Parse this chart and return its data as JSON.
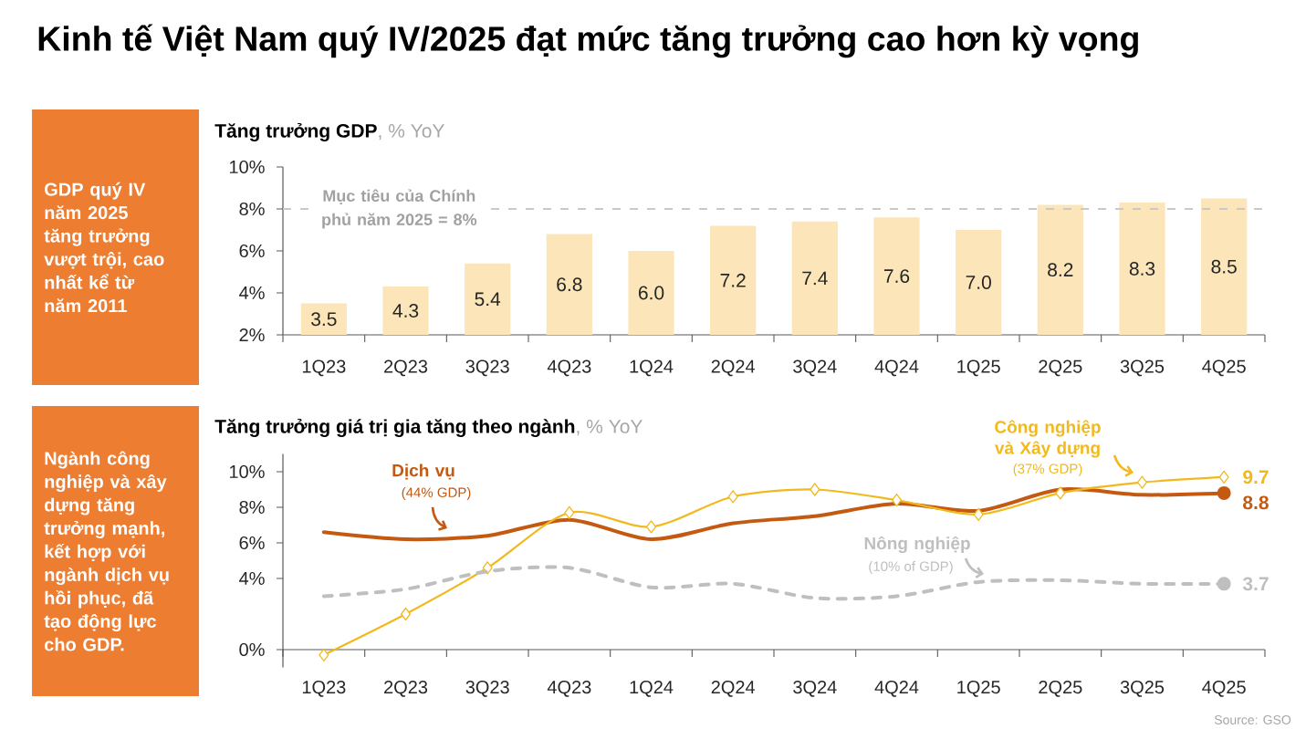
{
  "chart_data": [
    {
      "type": "other",
      "title": "Kinh tế Việt Nam quý IV/2025 đạt mức tăng trưởng cao hơn kỳ vọng"
    },
    {
      "type": "other",
      "color": "#ED7D31",
      "annotations": [
        "GDP quý IV năm 2025 tăng trưởng vượt trội, cao nhất kể từ năm 2011"
      ]
    },
    {
      "type": "bar",
      "title": "**Tăng trưởng GDP**, % YoY",
      "categories": [
        "1Q23",
        "2Q23",
        "3Q23",
        "4Q23",
        "1Q24",
        "2Q24",
        "3Q24",
        "4Q24",
        "1Q25",
        "2Q25",
        "3Q25",
        "4Q25"
      ],
      "values": [
        3.5,
        4.3,
        5.4,
        6.8,
        6.0,
        7.2,
        7.4,
        7.6,
        7.0,
        8.2,
        8.3,
        8.5
      ],
      "value_labels": [
        "3.5",
        "4.3",
        "5.4",
        "6.8",
        "6.0",
        "7.2",
        "7.4",
        "7.6",
        "7.0",
        "8.2",
        "8.3",
        "8.5"
      ],
      "color": "#FCE6B9",
      "ylim": [
        2,
        10
      ],
      "yticks": [
        {
          "value": 2,
          "label": "2%"
        },
        {
          "value": 4,
          "label": "4%"
        },
        {
          "value": 6,
          "label": "6%"
        },
        {
          "value": 8,
          "label": "8%"
        },
        {
          "value": 10,
          "label": "10%"
        }
      ],
      "ref_lines": [
        {
          "axis": "y",
          "value": 8,
          "label": "Mục tiêu của Chính phủ năm 2025 = 8%",
          "color": "#C9C9C9",
          "line_style": "dashed"
        }
      ]
    },
    {
      "type": "other",
      "color": "#ED7D31",
      "annotations": [
        "Ngành công nghiệp và xây dựng tăng trưởng mạnh, kết hợp với ngành dịch vụ hồi phục, đã tạo động lực cho GDP."
      ]
    },
    {
      "type": "line",
      "title": "**Tăng trưởng giá trị gia tăng theo ngành**, % YoY",
      "categories": [
        "1Q23",
        "2Q23",
        "3Q23",
        "4Q23",
        "1Q24",
        "2Q24",
        "3Q24",
        "4Q24",
        "1Q25",
        "2Q25",
        "3Q25",
        "4Q25"
      ],
      "series": [
        {
          "name": "Dịch vụ",
          "color": "#C45911",
          "values": [
            6.6,
            6.2,
            6.4,
            7.3,
            6.2,
            7.1,
            7.5,
            8.2,
            7.8,
            9.0,
            8.7,
            8.8
          ]
        },
        {
          "name": "Công nghiệp và Xây dựng",
          "color": "#F2B91E",
          "marker": "diamond",
          "values": [
            -0.3,
            2.0,
            4.6,
            7.7,
            6.9,
            8.6,
            9.0,
            8.4,
            7.6,
            8.8,
            9.4,
            9.7
          ],
          "value_labels": [
            null,
            null,
            null,
            null,
            null,
            null,
            null,
            null,
            null,
            null,
            null,
            "9.7"
          ]
        },
        {
          "name": "Nông nghiệp",
          "color": "#BFBFBF",
          "line_style": "dashed",
          "values": [
            3.0,
            3.4,
            4.4,
            4.6,
            3.5,
            3.7,
            2.9,
            3.0,
            3.8,
            3.9,
            3.7,
            3.7
          ]
        },
        {
          "type": "scatter",
          "x": [
            "4Q25"
          ],
          "values": [
            8.8
          ],
          "color": "#C45911",
          "marker": "circle",
          "value_labels": [
            "8.8"
          ]
        },
        {
          "type": "scatter",
          "x": [
            "4Q25"
          ],
          "values": [
            3.7
          ],
          "color": "#BFBFBF",
          "marker": "circle",
          "value_labels": [
            "3.7"
          ]
        }
      ],
      "ylim": [
        -1,
        11
      ],
      "yticks": [
        {
          "value": 0,
          "label": "0%"
        },
        {
          "value": 4,
          "label": "4%"
        },
        {
          "value": 6,
          "label": "6%"
        },
        {
          "value": 8,
          "label": "8%"
        },
        {
          "value": 10,
          "label": "10%"
        }
      ],
      "annotations": [
        "(44% GDP)",
        "(37% GDP)",
        "(10% of GDP)",
        "Source: GSO"
      ]
    }
  ]
}
